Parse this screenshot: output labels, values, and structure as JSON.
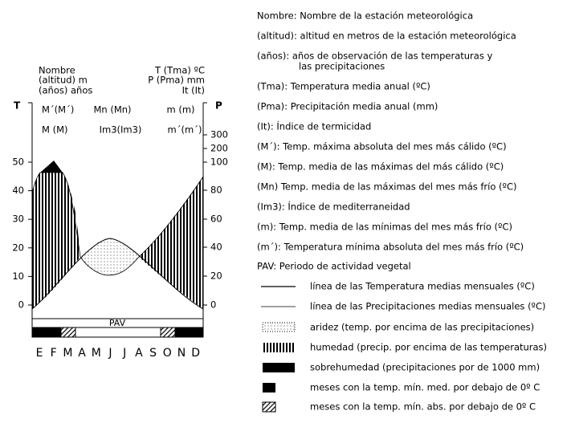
{
  "diagram": {
    "header_left": [
      "Nombre",
      "(altitud) m",
      "(años) años"
    ],
    "header_right": [
      "T (Tma) ºC",
      "P (Pma) mm",
      "It (It)"
    ],
    "axis_left": "T",
    "axis_right": "P",
    "rows": [
      [
        "M´(M´)",
        "Mn (Mn)",
        "m (m)"
      ],
      [
        "M (M)",
        "Im3(Im3)",
        "m´(m´)"
      ]
    ],
    "left_ticks": [
      0,
      10,
      20,
      30,
      40,
      50
    ],
    "right_ticks": [
      0,
      20,
      40,
      60,
      80,
      100,
      200,
      300
    ],
    "months": [
      "E",
      "F",
      "M",
      "A",
      "M",
      "J",
      "J",
      "A",
      "S",
      "O",
      "N",
      "D"
    ],
    "pav": "PAV"
  },
  "definitions": [
    [
      "Nombre: Nombre de la estación meteorológica"
    ],
    [
      "(altitud): altitud en metros de la estación meteorológica"
    ],
    [
      "(años): años de observación de las temperaturas y",
      "las precipitaciones"
    ],
    [
      "(Tma): Temperatura media anual (ºC)"
    ],
    [
      "(Pma): Precipitación media anual (mm)"
    ],
    [
      "(It): Índice de termicidad"
    ],
    [
      "(M´): Temp. máxima absoluta del mes más cálido (ºC)"
    ],
    [
      "(M): Temp. media de las máximas del más cálido (ºC)"
    ],
    [
      "(Mn) Temp. media de las máximas del mes más frío (ºC)"
    ],
    [
      "(Im3): Índice de mediterraneidad"
    ],
    [
      "(m): Temp. media de las mínimas del mes más frío (ºC)"
    ],
    [
      "(m´): Temperatura mínima absoluta del mes más frío (ºC)"
    ],
    [
      "PAV: Periodo de actividad vegetal"
    ]
  ],
  "legend": [
    "línea de las Temperatura medias mensuales (ºC)",
    "línea de las Precipitaciones medias mensuales (ºC)",
    "aridez (temp. por encima de las precipitaciones)",
    "humedad (precip. por encima de las temperaturas)",
    "sobrehumedad (precipitaciones por de 1000 mm)",
    "meses con la temp. mín. med. por debajo de 0º C",
    "meses con la temp. mín. abs. por debajo de 0º C"
  ]
}
